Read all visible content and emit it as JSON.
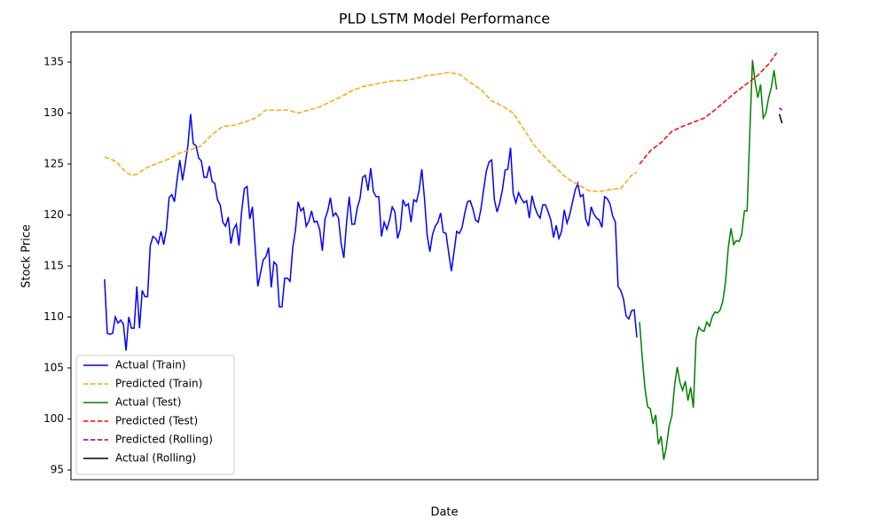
{
  "chart_data": {
    "type": "line",
    "title": "PLD LSTM Model Performance",
    "x_label": "Date",
    "y_label": "Stock Price",
    "xlim": [
      -12.5,
      265.3
    ],
    "ylim": [
      94.04,
      137.96
    ],
    "yticks": [
      95,
      100,
      105,
      110,
      115,
      120,
      125,
      130,
      135
    ],
    "legend": "lower left",
    "series": [
      {
        "name": "Actual (Train)",
        "color": "#0000ff",
        "dash": false,
        "x": [
          0,
          1,
          2,
          3,
          4,
          5,
          6,
          7,
          8,
          9,
          10,
          11,
          12,
          13,
          14,
          15,
          16,
          17,
          18,
          19,
          20,
          21,
          22,
          23,
          24,
          25,
          26,
          27,
          28,
          29,
          30,
          31,
          32,
          33,
          34,
          35,
          36,
          37,
          38,
          39,
          40,
          41,
          42,
          43,
          44,
          45,
          46,
          47,
          48,
          49,
          50,
          51,
          52,
          53,
          54,
          55,
          56,
          57,
          58,
          59,
          60,
          61,
          62,
          63,
          64,
          65,
          66,
          67,
          68,
          69,
          70,
          71,
          72,
          73,
          74,
          75,
          76,
          77,
          78,
          79,
          80,
          81,
          82,
          83,
          84,
          85,
          86,
          87,
          88,
          89,
          90,
          91,
          92,
          93,
          94,
          95,
          96,
          97,
          98,
          99,
          100,
          101,
          102,
          103,
          104,
          105,
          106,
          107,
          108,
          109,
          110,
          111,
          112,
          113,
          114,
          115,
          116,
          117,
          118,
          119,
          120,
          121,
          122,
          123,
          124,
          125,
          126,
          127,
          128,
          129,
          130,
          131,
          132,
          133,
          134,
          135,
          136,
          137,
          138,
          139,
          140,
          141,
          142,
          143,
          144,
          145,
          146,
          147,
          148,
          149,
          150,
          151,
          152,
          153,
          154,
          155,
          156,
          157,
          158,
          159,
          160,
          161,
          162,
          163,
          164,
          165,
          166,
          167,
          168,
          169,
          170,
          171,
          172,
          173,
          174,
          175,
          176,
          177,
          178,
          179,
          180,
          181,
          182,
          183,
          184,
          185,
          186,
          187,
          188,
          189,
          190,
          191,
          192,
          193,
          194,
          195,
          196,
          197,
          198
        ],
        "values": [
          113.7,
          108.4,
          108.3,
          108.4,
          110.0,
          109.4,
          109.7,
          109.3,
          106.7,
          110.0,
          108.9,
          108.9,
          113.0,
          108.9,
          112.6,
          112.0,
          112.0,
          117.0,
          117.9,
          117.7,
          117.2,
          118.4,
          117.1,
          118.6,
          121.7,
          122.0,
          121.3,
          123.5,
          125.4,
          123.4,
          125.0,
          126.8,
          129.9,
          127.0,
          126.8,
          125.6,
          125.3,
          123.7,
          123.7,
          124.8,
          123.3,
          123.1,
          121.5,
          121.0,
          119.3,
          118.9,
          119.8,
          117.2,
          118.6,
          119.1,
          117.0,
          120.4,
          122.6,
          122.8,
          119.6,
          120.8,
          117.0,
          113.0,
          114.3,
          115.6,
          115.9,
          116.8,
          112.9,
          115.4,
          115.1,
          111.0,
          111.0,
          113.8,
          113.8,
          113.5,
          116.8,
          118.5,
          121.3,
          120.4,
          120.7,
          118.9,
          119.4,
          120.4,
          119.3,
          119.4,
          118.6,
          116.5,
          119.6,
          120.4,
          121.7,
          119.9,
          120.2,
          119.7,
          117.2,
          115.8,
          119.2,
          121.8,
          119.1,
          119.1,
          120.7,
          121.6,
          123.7,
          123.9,
          122.4,
          124.6,
          122.3,
          121.8,
          121.8,
          117.9,
          119.3,
          118.6,
          119.5,
          120.8,
          120.3,
          117.7,
          118.6,
          121.5,
          120.9,
          121.1,
          119.3,
          121.5,
          121.3,
          122.4,
          124.5,
          121.6,
          118.0,
          116.4,
          118.1,
          118.9,
          119.3,
          120.2,
          118.3,
          118.2,
          116.3,
          114.5,
          116.4,
          118.4,
          118.2,
          118.8,
          120.2,
          121.3,
          121.4,
          120.6,
          119.5,
          119.3,
          120.6,
          122.5,
          124.3,
          125.2,
          125.4,
          121.5,
          120.3,
          121.2,
          122.5,
          124.4,
          124.5,
          126.6,
          122.1,
          121.2,
          122.2,
          121.6,
          121.2,
          121.4,
          119.7,
          121.9,
          120.8,
          120.1,
          119.7,
          121.0,
          121.0,
          120.3,
          119.5,
          117.8,
          119.0,
          117.7,
          118.4,
          120.5,
          119.2,
          120.0,
          121.2,
          122.4,
          123.1,
          121.8,
          122.0,
          119.6,
          118.9,
          120.8,
          120.1,
          119.7,
          119.5,
          118.8,
          121.8,
          121.6,
          121.1,
          119.9,
          119.3,
          113.0,
          112.6,
          111.8,
          110.1,
          109.8,
          110.6,
          110.7,
          108.0
        ]
      },
      {
        "name": "Predicted (Train)",
        "color": "#ffa500",
        "dash": true,
        "x": [
          0,
          4,
          8,
          10,
          12,
          16,
          20,
          24,
          28,
          32,
          36,
          40,
          44,
          48,
          52,
          56,
          60,
          64,
          68,
          72,
          76,
          80,
          84,
          88,
          92,
          96,
          100,
          104,
          108,
          112,
          116,
          120,
          124,
          128,
          132,
          136,
          140,
          144,
          148,
          152,
          156,
          160,
          164,
          168,
          172,
          176,
          180,
          184,
          188,
          192,
          196,
          198
        ],
        "values": [
          125.7,
          125.3,
          124.2,
          123.9,
          124.0,
          124.7,
          125.1,
          125.5,
          126.1,
          126.4,
          126.8,
          127.9,
          128.7,
          128.8,
          129.1,
          129.5,
          130.3,
          130.3,
          130.3,
          130.0,
          130.3,
          130.6,
          131.1,
          131.6,
          132.2,
          132.6,
          132.8,
          133.0,
          133.2,
          133.2,
          133.4,
          133.7,
          133.8,
          134.0,
          133.8,
          133.0,
          132.3,
          131.2,
          130.7,
          130.0,
          128.4,
          126.8,
          125.6,
          124.6,
          123.6,
          123.0,
          122.4,
          122.3,
          122.5,
          122.6,
          123.9,
          124.2
        ]
      },
      {
        "name": "Actual (Test)",
        "color": "#008000",
        "dash": false,
        "x": [
          199,
          200,
          201,
          202,
          203,
          204,
          205,
          206,
          207,
          208,
          209,
          210,
          211,
          212,
          213,
          214,
          215,
          216,
          217,
          218,
          219,
          220,
          221,
          222,
          223,
          224,
          225,
          226,
          227,
          228,
          229,
          230,
          231,
          232,
          233,
          234,
          235,
          236,
          237,
          238,
          239,
          240,
          241,
          242,
          243,
          244,
          245,
          246,
          247,
          248,
          249,
          250
        ],
        "values": [
          109.5,
          106.0,
          103.0,
          101.2,
          101.0,
          99.5,
          100.4,
          97.5,
          98.3,
          96.0,
          97.3,
          99.3,
          100.3,
          103.2,
          105.1,
          103.6,
          102.8,
          103.7,
          101.8,
          103.1,
          101.1,
          107.8,
          109.0,
          108.7,
          108.6,
          109.5,
          109.1,
          110.0,
          110.5,
          110.4,
          110.7,
          111.6,
          113.5,
          116.8,
          118.7,
          117.1,
          117.5,
          117.4,
          118.1,
          120.4,
          120.4,
          128.0,
          135.2,
          133.0,
          131.5,
          132.8,
          129.5,
          130.0,
          131.5,
          132.5,
          134.2,
          132.3
        ]
      },
      {
        "name": "Predicted (Test)",
        "color": "#ff0000",
        "dash": true,
        "x": [
          199,
          203,
          207,
          211,
          215,
          219,
          223,
          227,
          231,
          235,
          239,
          243,
          247,
          250
        ],
        "values": [
          125.0,
          126.3,
          127.1,
          128.2,
          128.7,
          129.1,
          129.5,
          130.3,
          131.2,
          132.1,
          132.9,
          133.7,
          134.8,
          135.9
        ]
      },
      {
        "name": "Predicted (Rolling)",
        "color": "#800080",
        "dash": true,
        "x": [
          251,
          252
        ],
        "values": [
          130.5,
          130.3
        ]
      },
      {
        "name": "Actual (Rolling)",
        "color": "#000000",
        "dash": false,
        "x": [
          251,
          252
        ],
        "values": [
          129.9,
          129.0
        ]
      }
    ]
  }
}
